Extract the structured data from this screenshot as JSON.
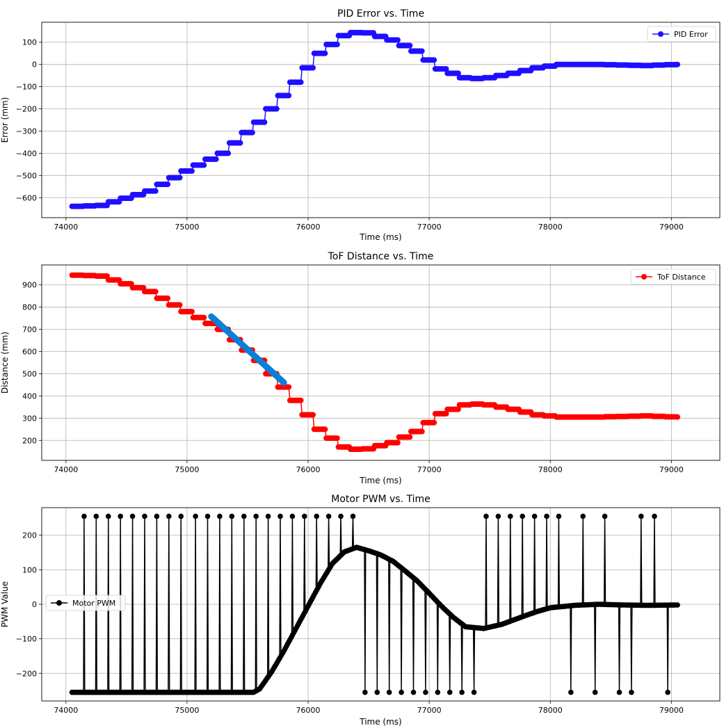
{
  "chart_data": [
    {
      "type": "line",
      "title": "PID Error vs. Time",
      "xlabel": "Time (ms)",
      "ylabel": "Error (mm)",
      "xlim": [
        73800,
        79400
      ],
      "ylim": [
        -690,
        190
      ],
      "xticks": [
        74000,
        75000,
        76000,
        77000,
        78000,
        79000
      ],
      "yticks": [
        100,
        0,
        -100,
        -200,
        -300,
        -400,
        -500,
        -600
      ],
      "ytick_labels": [
        "100",
        "0",
        "−100",
        "−200",
        "−300",
        "−400",
        "−500",
        "−600"
      ],
      "legend": {
        "position": "top-right"
      },
      "grid": true,
      "series": [
        {
          "name": "PID Error",
          "color": "#1f0fff",
          "marker": "circle",
          "x_start": 74050,
          "x_end": 79050,
          "knots": [
            [
              74050,
              -640
            ],
            [
              74300,
              -635
            ],
            [
              74700,
              -570
            ],
            [
              75000,
              -480
            ],
            [
              75300,
              -400
            ],
            [
              75600,
              -260
            ],
            [
              75900,
              -80
            ],
            [
              76100,
              50
            ],
            [
              76300,
              130
            ],
            [
              76450,
              150
            ],
            [
              76700,
              110
            ],
            [
              76900,
              60
            ],
            [
              77100,
              -20
            ],
            [
              77300,
              -60
            ],
            [
              77450,
              -65
            ],
            [
              77700,
              -40
            ],
            [
              77900,
              -15
            ],
            [
              78100,
              0
            ],
            [
              78400,
              0
            ],
            [
              78800,
              -5
            ],
            [
              79050,
              0
            ]
          ]
        }
      ]
    },
    {
      "type": "line",
      "title": "ToF Distance vs. Time",
      "xlabel": "Time (ms)",
      "ylabel": "Distance (mm)",
      "xlim": [
        73800,
        79400
      ],
      "ylim": [
        110,
        990
      ],
      "xticks": [
        74000,
        75000,
        76000,
        77000,
        78000,
        79000
      ],
      "yticks": [
        900,
        800,
        700,
        600,
        500,
        400,
        300,
        200
      ],
      "ytick_labels": [
        "900",
        "800",
        "700",
        "600",
        "500",
        "400",
        "300",
        "200"
      ],
      "legend": {
        "position": "top-right"
      },
      "grid": true,
      "series": [
        {
          "name": "ToF Distance",
          "color": "#ff0000",
          "marker": "circle",
          "x_start": 74050,
          "x_end": 79050,
          "knots": [
            [
              74050,
              945
            ],
            [
              74300,
              940
            ],
            [
              74700,
              870
            ],
            [
              75000,
              780
            ],
            [
              75300,
              700
            ],
            [
              75600,
              560
            ],
            [
              75900,
              380
            ],
            [
              76100,
              250
            ],
            [
              76300,
              170
            ],
            [
              76450,
              155
            ],
            [
              76700,
              190
            ],
            [
              76900,
              240
            ],
            [
              77100,
              320
            ],
            [
              77300,
              360
            ],
            [
              77450,
              365
            ],
            [
              77700,
              340
            ],
            [
              77900,
              315
            ],
            [
              78100,
              305
            ],
            [
              78400,
              305
            ],
            [
              78800,
              310
            ],
            [
              79050,
              305
            ]
          ]
        }
      ],
      "annotation_line": {
        "color": "#0a7fd8",
        "from": [
          75200,
          758
        ],
        "to": [
          75800,
          460
        ]
      }
    },
    {
      "type": "line",
      "title": "Motor PWM vs. Time",
      "xlabel": "Time (ms)",
      "ylabel": "PWM Value",
      "xlim": [
        73800,
        79400
      ],
      "ylim": [
        -280,
        280
      ],
      "xticks": [
        74000,
        75000,
        76000,
        77000,
        78000,
        79000
      ],
      "yticks": [
        200,
        100,
        0,
        -100,
        -200
      ],
      "ytick_labels": [
        "200",
        "100",
        "0",
        "−100",
        "−200"
      ],
      "legend": {
        "position": "center-left"
      },
      "grid": true,
      "series": [
        {
          "name": "Motor PWM",
          "color": "#000000",
          "marker": "circle",
          "x_start": 74050,
          "x_end": 79050,
          "knots": [
            [
              74050,
              -255
            ],
            [
              75550,
              -255
            ],
            [
              75600,
              -245
            ],
            [
              75700,
              -195
            ],
            [
              75800,
              -135
            ],
            [
              75900,
              -70
            ],
            [
              76000,
              -5
            ],
            [
              76100,
              60
            ],
            [
              76200,
              118
            ],
            [
              76300,
              152
            ],
            [
              76400,
              165
            ],
            [
              76500,
              155
            ],
            [
              76600,
              143
            ],
            [
              76700,
              125
            ],
            [
              76800,
              97
            ],
            [
              76900,
              68
            ],
            [
              77000,
              32
            ],
            [
              77100,
              -5
            ],
            [
              77200,
              -38
            ],
            [
              77300,
              -65
            ],
            [
              77450,
              -70
            ],
            [
              77600,
              -58
            ],
            [
              77700,
              -45
            ],
            [
              77800,
              -32
            ],
            [
              77900,
              -20
            ],
            [
              78000,
              -10
            ],
            [
              78200,
              -3
            ],
            [
              78400,
              0
            ],
            [
              78600,
              -2
            ],
            [
              78800,
              -3
            ],
            [
              79050,
              -2
            ]
          ],
          "spikes_high_value": 255,
          "spikes_high": [
            74150,
            74250,
            74350,
            74450,
            74550,
            74650,
            74750,
            74850,
            74950,
            75070,
            75170,
            75270,
            75370,
            75470,
            75570,
            75670,
            75770,
            75870,
            75970,
            76070,
            76170,
            76270,
            76370,
            77470,
            77570,
            77670,
            77770,
            77870,
            77970,
            78070,
            78270,
            78450,
            78750,
            78860
          ],
          "spikes_low_value": -255,
          "spikes_low": [
            76470,
            76570,
            76670,
            76770,
            76870,
            76970,
            77070,
            77170,
            77270,
            77370,
            78170,
            78370,
            78570,
            78670,
            78970
          ]
        }
      ]
    }
  ]
}
